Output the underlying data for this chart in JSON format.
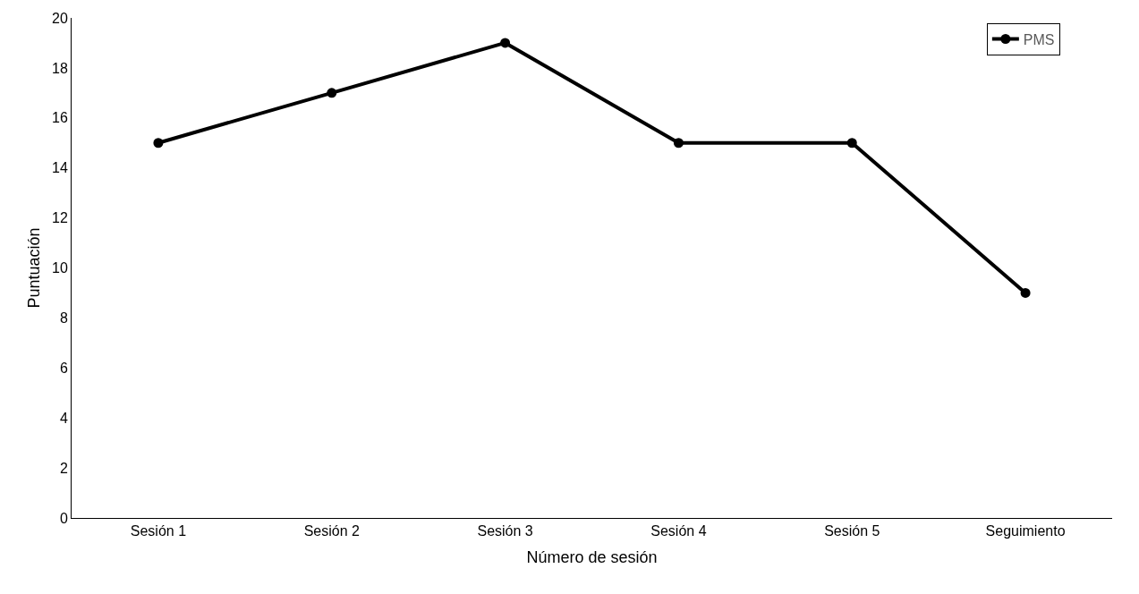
{
  "chart_data": {
    "type": "line",
    "xlabel": "Número de sesión",
    "ylabel": "Puntuación",
    "categories": [
      "Sesión 1",
      "Sesión 2",
      "Sesión 3",
      "Sesión 4",
      "Sesión 5",
      "Seguimiento"
    ],
    "series": [
      {
        "name": "PMS",
        "color": "#000000",
        "values": [
          15,
          17,
          19,
          15,
          15,
          9
        ]
      }
    ],
    "ylim": [
      0,
      20
    ],
    "yticks": [
      0,
      2,
      4,
      6,
      8,
      10,
      12,
      14,
      16,
      18,
      20
    ],
    "legend": "top right",
    "marker": "circle",
    "line_style": "solid"
  }
}
